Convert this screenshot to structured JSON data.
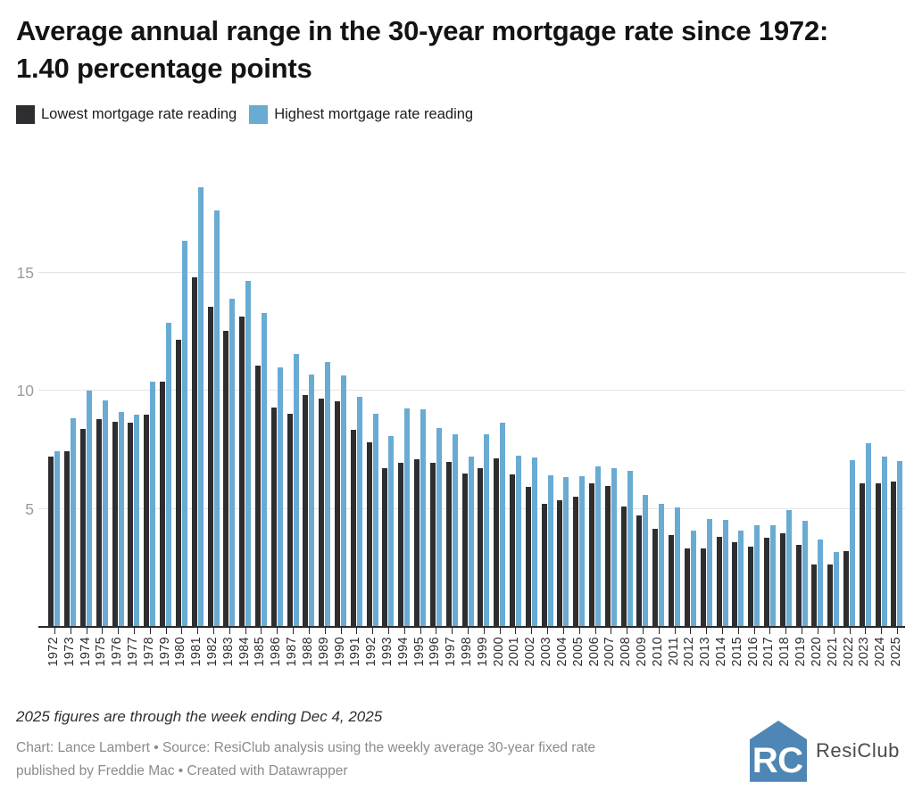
{
  "header": {
    "title": "Average annual range in the 30-year mortgage rate since 1972: 1.40 percentage points",
    "legend": [
      {
        "label": "Lowest mortgage rate reading",
        "color": "#2e2e30"
      },
      {
        "label": "Highest mortgage rate reading",
        "color": "#69abd3"
      }
    ]
  },
  "chart_data": {
    "type": "bar",
    "title": "Average annual range in the 30-year mortgage rate since 1972: 1.40 percentage points",
    "xlabel": "",
    "ylabel": "",
    "categories": [
      "1972",
      "1973",
      "1974",
      "1975",
      "1976",
      "1977",
      "1978",
      "1979",
      "1980",
      "1981",
      "1982",
      "1983",
      "1984",
      "1985",
      "1986",
      "1987",
      "1988",
      "1989",
      "1990",
      "1991",
      "1992",
      "1993",
      "1994",
      "1995",
      "1996",
      "1997",
      "1998",
      "1999",
      "2000",
      "2001",
      "2002",
      "2003",
      "2004",
      "2005",
      "2006",
      "2007",
      "2008",
      "2009",
      "2010",
      "2011",
      "2012",
      "2013",
      "2014",
      "2015",
      "2016",
      "2017",
      "2018",
      "2019",
      "2020",
      "2021",
      "2022",
      "2023",
      "2024",
      "2025"
    ],
    "series": [
      {
        "name": "Lowest mortgage rate reading",
        "color": "#2e2e30",
        "values": [
          7.23,
          7.43,
          8.4,
          8.8,
          8.7,
          8.65,
          8.98,
          10.38,
          12.18,
          14.8,
          13.57,
          12.55,
          13.14,
          11.09,
          9.29,
          9.03,
          9.84,
          9.68,
          9.56,
          8.35,
          7.84,
          6.74,
          6.97,
          7.11,
          6.94,
          6.99,
          6.49,
          6.74,
          7.13,
          6.45,
          5.93,
          5.21,
          5.38,
          5.53,
          6.1,
          5.96,
          5.1,
          4.71,
          4.17,
          3.91,
          3.31,
          3.34,
          3.8,
          3.59,
          3.41,
          3.78,
          3.95,
          3.49,
          2.66,
          2.65,
          3.22,
          6.09,
          6.08,
          6.17
        ]
      },
      {
        "name": "Highest mortgage rate reading",
        "color": "#69abd3",
        "values": [
          7.46,
          8.85,
          10.03,
          9.6,
          9.1,
          9.0,
          10.38,
          12.9,
          16.35,
          18.63,
          17.66,
          13.89,
          14.68,
          13.29,
          10.99,
          11.58,
          10.71,
          11.22,
          10.67,
          9.75,
          9.03,
          8.07,
          9.25,
          9.22,
          8.42,
          8.18,
          7.22,
          8.15,
          8.64,
          7.24,
          7.18,
          6.44,
          6.34,
          6.37,
          6.8,
          6.74,
          6.63,
          5.59,
          5.21,
          5.05,
          4.08,
          4.58,
          4.53,
          4.09,
          4.32,
          4.3,
          4.94,
          4.51,
          3.72,
          3.18,
          7.08,
          7.79,
          7.22,
          7.04
        ]
      }
    ],
    "yticks": [
      5,
      10,
      15
    ],
    "ylim": [
      0,
      19.65
    ],
    "grid": true,
    "legend_position": "top",
    "axis_colors": {
      "gridline": "#e4e4e4",
      "baseline": "#2a2a2a",
      "ytick_text": "#9b9b9b",
      "xtick_text": "#2d2d2d"
    }
  },
  "footer": {
    "note": "2025 figures are through the week ending Dec 4, 2025",
    "credit_lines": [
      "Chart: Lance Lambert • Source: ResiClub analysis using the weekly average 30-year fixed rate",
      "published by Freddie Mac • Created with Datawrapper"
    ],
    "logo_text": "ResiClub"
  }
}
